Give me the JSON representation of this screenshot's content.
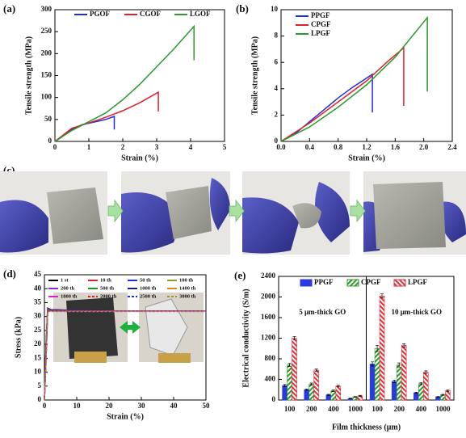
{
  "chart_data": [
    {
      "type": "line",
      "panel_label": "(a)",
      "xlabel": "Strain (%)",
      "ylabel": "Tensile strength (MPa)",
      "xlim": [
        0,
        5
      ],
      "xticks": [
        0,
        1,
        2,
        3,
        4,
        5
      ],
      "ylim": [
        0,
        300
      ],
      "yticks": [
        0,
        50,
        100,
        150,
        200,
        250,
        300
      ],
      "series": [
        {
          "name": "PGOF",
          "color": "#1f2de0",
          "x": [
            0,
            0.2,
            0.5,
            0.8,
            1.2,
            1.5,
            1.75,
            1.75
          ],
          "values": [
            0,
            10,
            28,
            38,
            45,
            50,
            57,
            27
          ]
        },
        {
          "name": "CGOF",
          "color": "#e0202a",
          "x": [
            0,
            0.2,
            0.5,
            1,
            1.5,
            2,
            2.5,
            3.05,
            3.05
          ],
          "values": [
            0,
            12,
            30,
            42,
            55,
            70,
            88,
            112,
            68
          ]
        },
        {
          "name": "LGOF",
          "color": "#2a9a2a",
          "x": [
            0,
            0.5,
            1,
            1.5,
            2,
            2.5,
            3,
            3.5,
            4.1,
            4.1
          ],
          "values": [
            0,
            25,
            45,
            65,
            95,
            130,
            170,
            210,
            262,
            185
          ]
        }
      ]
    },
    {
      "type": "line",
      "panel_label": "(b)",
      "xlabel": "Strain (%)",
      "ylabel": "Tensile strength (MPa)",
      "xlim": [
        0,
        2.4
      ],
      "xticks": [
        {
          "value": 0,
          "label": "0.0"
        },
        0.4,
        0.8,
        1.2,
        1.6,
        {
          "value": 2,
          "label": "2.0"
        },
        2.4
      ],
      "ylim": [
        0,
        10
      ],
      "yticks": [
        0,
        2,
        4,
        6,
        8,
        10
      ],
      "series": [
        {
          "name": "PPGF",
          "color": "#1f2de0",
          "x": [
            0,
            0.2,
            0.4,
            0.6,
            0.8,
            1.0,
            1.28,
            1.28
          ],
          "values": [
            0,
            0.6,
            1.5,
            2.4,
            3.3,
            4.1,
            5.1,
            2.2
          ]
        },
        {
          "name": "CPGF",
          "color": "#e0202a",
          "x": [
            0,
            0.4,
            0.8,
            1.2,
            1.5,
            1.72,
            1.72
          ],
          "values": [
            0,
            1.4,
            3.0,
            4.6,
            6.1,
            7.1,
            2.7
          ]
        },
        {
          "name": "LPGF",
          "color": "#2a9a2a",
          "x": [
            0,
            0.4,
            0.8,
            1.2,
            1.6,
            2.05,
            2.05
          ],
          "values": [
            0,
            1.1,
            2.6,
            4.3,
            6.4,
            9.4,
            3.8
          ]
        }
      ]
    },
    {
      "type": "line",
      "panel_label": "(d)",
      "xlabel": "Strain (%)",
      "ylabel": "Stress (kPa)",
      "xlim": [
        0,
        50
      ],
      "xticks": [
        0,
        10,
        20,
        30,
        40,
        50
      ],
      "ylim": [
        0,
        45
      ],
      "yticks": [
        0,
        5,
        10,
        15,
        20,
        25,
        30,
        35,
        40,
        45
      ],
      "x": [
        0,
        0.5,
        1,
        2,
        10,
        20,
        30,
        40,
        50
      ],
      "series": [
        {
          "name": "1 st",
          "color": "#000000",
          "values": [
            0,
            20,
            33,
            32.5,
            32.2,
            32,
            32,
            32,
            32
          ]
        },
        {
          "name": "10 th",
          "color": "#e0202a",
          "values": [
            0,
            19,
            32.8,
            32.4,
            32.1,
            32,
            32,
            32,
            32
          ]
        },
        {
          "name": "50 th",
          "color": "#1f2de0",
          "values": [
            0,
            18,
            32.6,
            32.3,
            32.1,
            32,
            32,
            32,
            32
          ]
        },
        {
          "name": "100 th",
          "color": "#9a9a20",
          "values": [
            0,
            18,
            32.5,
            32.2,
            32,
            32,
            32,
            32,
            32
          ]
        },
        {
          "name": "200 th",
          "color": "#8a2be2",
          "values": [
            0,
            17,
            32.4,
            32.2,
            32,
            32,
            32,
            32,
            32
          ]
        },
        {
          "name": "500 th",
          "color": "#1a9a1a",
          "values": [
            0,
            17,
            32.3,
            32.1,
            32,
            32,
            32,
            32,
            32
          ]
        },
        {
          "name": "1000 th",
          "color": "#1a1a80",
          "values": [
            0,
            16,
            32.2,
            32.1,
            32,
            32,
            32,
            32,
            32
          ]
        },
        {
          "name": "1400 th",
          "color": "#e08a10",
          "values": [
            0,
            16,
            32.1,
            32,
            32,
            32,
            32,
            32,
            32
          ]
        },
        {
          "name": "1800 th",
          "color": "#e020c0",
          "values": [
            0,
            15,
            32,
            32,
            32,
            32,
            32,
            32,
            32
          ]
        },
        {
          "name": "2000 th",
          "color": "#e0202a",
          "dash": true,
          "values": [
            0,
            15,
            32,
            32,
            31.9,
            31.9,
            31.9,
            31.9,
            31.9
          ]
        },
        {
          "name": "2500 th",
          "color": "#1f2de0",
          "dash": true,
          "values": [
            0,
            14,
            31.9,
            31.9,
            31.9,
            31.9,
            31.9,
            31.9,
            31.9
          ]
        },
        {
          "name": "3000 th",
          "color": "#9a9a20",
          "dash": true,
          "values": [
            0,
            14,
            31.8,
            31.8,
            31.8,
            31.8,
            31.8,
            31.8,
            31.8
          ]
        }
      ]
    },
    {
      "type": "bar",
      "panel_label": "(e)",
      "xlabel": "Film thickness (μm)",
      "ylabel": "Electrical conductivity (S/m)",
      "annotations": [
        "5 μm-thick GO",
        "10 μm-thick GO"
      ],
      "categories": [
        "100",
        "200",
        "400",
        "1000",
        "100",
        "200",
        "400",
        "1000"
      ],
      "ylim": [
        0,
        2400
      ],
      "yticks": [
        0,
        400,
        800,
        1200,
        1600,
        2000,
        2400
      ],
      "series": [
        {
          "name": "PPGF",
          "color": "#2a3ae0",
          "hatch": false,
          "values": [
            280,
            200,
            100,
            30,
            700,
            360,
            140,
            60
          ],
          "errors": [
            20,
            15,
            10,
            5,
            40,
            25,
            12,
            8
          ]
        },
        {
          "name": "CPGF",
          "color": "#2a9a2a",
          "hatch": true,
          "values": [
            680,
            310,
            180,
            60,
            1000,
            680,
            320,
            100
          ],
          "errors": [
            30,
            20,
            15,
            8,
            60,
            40,
            20,
            10
          ]
        },
        {
          "name": "LPGF",
          "color": "#e0303a",
          "hatch": true,
          "values": [
            1200,
            580,
            270,
            80,
            2020,
            1060,
            540,
            180
          ],
          "errors": [
            30,
            20,
            15,
            10,
            40,
            30,
            25,
            12
          ]
        }
      ]
    }
  ],
  "photo_panel": {
    "label": "(c)"
  }
}
